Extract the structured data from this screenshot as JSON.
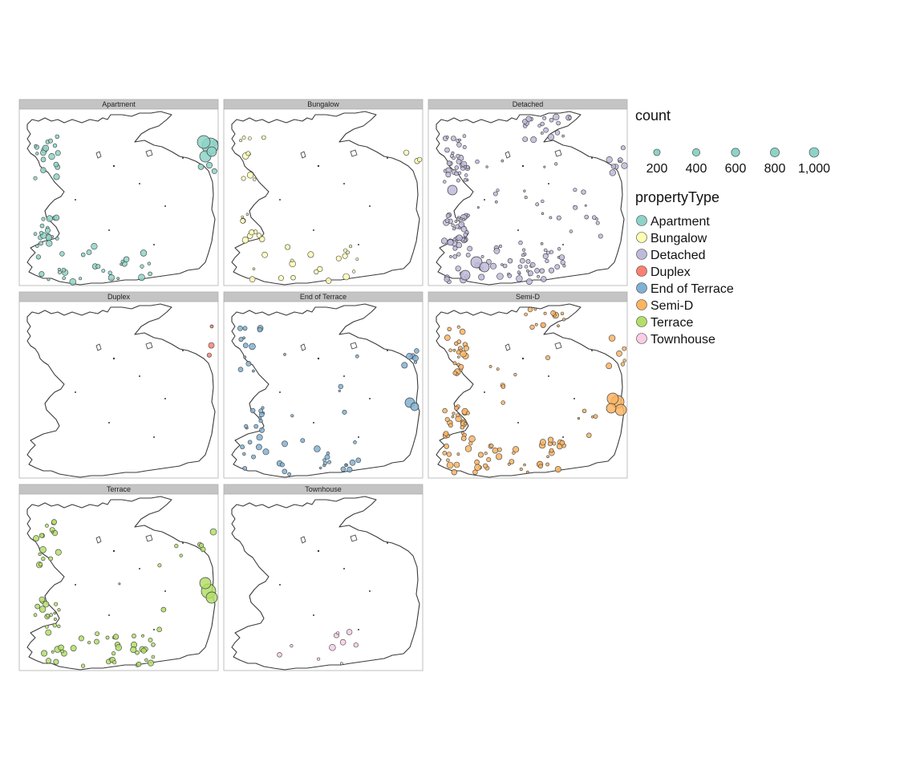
{
  "figure": {
    "panels": [
      {
        "label": "Apartment",
        "color": "#8DD3C7"
      },
      {
        "label": "Bungalow",
        "color": "#FFFFB3"
      },
      {
        "label": "Detached",
        "color": "#BEBADA"
      },
      {
        "label": "Duplex",
        "color": "#FB8072"
      },
      {
        "label": "End of Terrace",
        "color": "#80B1D3"
      },
      {
        "label": "Semi-D",
        "color": "#FDB462"
      },
      {
        "label": "Terrace",
        "color": "#B3DE69"
      },
      {
        "label": "Townhouse",
        "color": "#FCCDE5"
      }
    ],
    "legend": {
      "count_title": "count",
      "count_breaks": [
        {
          "label": "200",
          "value": 200
        },
        {
          "label": "400",
          "value": 400
        },
        {
          "label": "600",
          "value": 600
        },
        {
          "label": "800",
          "value": 800
        },
        {
          "label": "1,000",
          "value": 1000
        }
      ],
      "count_key_color": "#8DD3C7",
      "type_title": "propertyType",
      "types": [
        {
          "label": "Apartment",
          "color": "#8DD3C7"
        },
        {
          "label": "Bungalow",
          "color": "#FFFFB3"
        },
        {
          "label": "Detached",
          "color": "#BEBADA"
        },
        {
          "label": "Duplex",
          "color": "#FB8072"
        },
        {
          "label": "End of Terrace",
          "color": "#80B1D3"
        },
        {
          "label": "Semi-D",
          "color": "#FDB462"
        },
        {
          "label": "Terrace",
          "color": "#B3DE69"
        },
        {
          "label": "Townhouse",
          "color": "#FCCDE5"
        }
      ]
    },
    "colors": {
      "strip_background": "#C4C4C4",
      "panel_border": "#B0B0B0",
      "coastline": "#3A3A3A",
      "point_outline": "#3F3F3F"
    }
  }
}
